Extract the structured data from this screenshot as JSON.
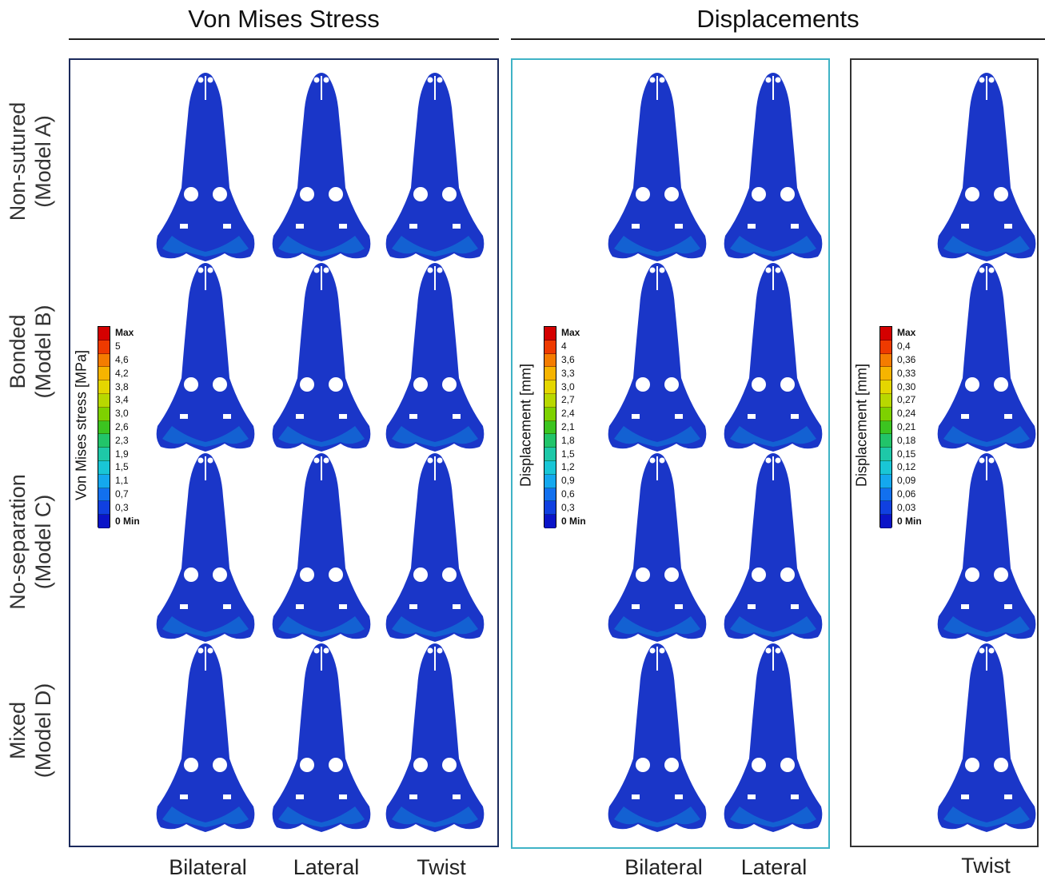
{
  "headers": {
    "stress": "Von Mises Stress",
    "displacement": "Displacements"
  },
  "rows": [
    {
      "line1": "Non-sutured",
      "line2": "(Model A)"
    },
    {
      "line1": "Bonded",
      "line2": "(Model B)"
    },
    {
      "line1": "No-separation",
      "line2": "(Model C)"
    },
    {
      "line1": "Mixed",
      "line2": "(Model D)"
    }
  ],
  "columns": {
    "stress": [
      "Bilateral",
      "Lateral",
      "Twist"
    ],
    "displacement": [
      "Bilateral",
      "Lateral"
    ],
    "twist": "Twist"
  },
  "legends": {
    "stress": {
      "title": "Von Mises stress [MPa]",
      "labels": [
        "Max",
        "5",
        "4,6",
        "4,2",
        "3,8",
        "3,4",
        "3,0",
        "2,6",
        "2,3",
        "1,9",
        "1,5",
        "1,1",
        "0,7",
        "0,3",
        "0 Min"
      ]
    },
    "displacement": {
      "title": "Displacement [mm]",
      "labels": [
        "Max",
        "4",
        "3,6",
        "3,3",
        "3,0",
        "2,7",
        "2,4",
        "2,1",
        "1,8",
        "1,5",
        "1,2",
        "0,9",
        "0,6",
        "0,3",
        "0 Min"
      ]
    },
    "twist": {
      "title": "Displacement [mm]",
      "labels": [
        "Max",
        "0,4",
        "0,36",
        "0,33",
        "0,30",
        "0,27",
        "0,24",
        "0,21",
        "0,18",
        "0,15",
        "0,12",
        "0,09",
        "0,06",
        "0,03",
        "0 Min"
      ]
    }
  },
  "colors": {
    "scale": [
      "#d40000",
      "#ee3a00",
      "#f47c00",
      "#f6b400",
      "#e4d600",
      "#b8d800",
      "#7ed100",
      "#3cc420",
      "#22c46a",
      "#1ec8a8",
      "#19c6d6",
      "#14a8ee",
      "#1270ee",
      "#1040e0",
      "#0a14c8"
    ],
    "stress_panel_border": "#1b2a5c",
    "displacement_panel_border": "#3fb3c6",
    "twist_panel_border": "#333333"
  }
}
